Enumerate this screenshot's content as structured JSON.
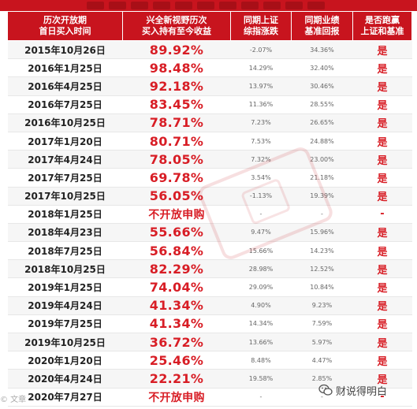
{
  "table": {
    "headers": [
      "历次开放期\n首日买入时间",
      "兴全新视野历次\n买入持有至今收益",
      "同期上证\n综指涨跌",
      "同期业绩\n基准回报",
      "是否跑赢\n上证和基准"
    ],
    "rows": [
      {
        "date": "2015年10月26日",
        "return": "89.92%",
        "sh": "-2.07%",
        "bench": "34.36%",
        "beat": "是"
      },
      {
        "date": "2016年1月25日",
        "return": "98.48%",
        "sh": "14.29%",
        "bench": "32.40%",
        "beat": "是"
      },
      {
        "date": "2016年4月25日",
        "return": "92.18%",
        "sh": "13.97%",
        "bench": "30.46%",
        "beat": "是"
      },
      {
        "date": "2016年7月25日",
        "return": "83.45%",
        "sh": "11.36%",
        "bench": "28.55%",
        "beat": "是"
      },
      {
        "date": "2016年10月25日",
        "return": "78.71%",
        "sh": "7.23%",
        "bench": "26.65%",
        "beat": "是"
      },
      {
        "date": "2017年1月20日",
        "return": "80.71%",
        "sh": "7.53%",
        "bench": "24.88%",
        "beat": "是"
      },
      {
        "date": "2017年4月24日",
        "return": "78.05%",
        "sh": "7.32%",
        "bench": "23.00%",
        "beat": "是"
      },
      {
        "date": "2017年7月25日",
        "return": "69.78%",
        "sh": "3.54%",
        "bench": "21.18%",
        "beat": "是"
      },
      {
        "date": "2017年10月25日",
        "return": "56.05%",
        "sh": "-1.13%",
        "bench": "19.39%",
        "beat": "是"
      },
      {
        "date": "2018年1月25日",
        "return": "不开放申购",
        "sh": "-",
        "bench": "-",
        "beat": "-"
      },
      {
        "date": "2018年4月23日",
        "return": "55.66%",
        "sh": "9.47%",
        "bench": "15.96%",
        "beat": "是"
      },
      {
        "date": "2018年7月25日",
        "return": "56.84%",
        "sh": "15.66%",
        "bench": "14.23%",
        "beat": "是"
      },
      {
        "date": "2018年10月25日",
        "return": "82.29%",
        "sh": "28.98%",
        "bench": "12.52%",
        "beat": "是"
      },
      {
        "date": "2019年1月25日",
        "return": "74.04%",
        "sh": "29.09%",
        "bench": "10.84%",
        "beat": "是"
      },
      {
        "date": "2019年4月24日",
        "return": "41.34%",
        "sh": "4.90%",
        "bench": "9.23%",
        "beat": "是"
      },
      {
        "date": "2019年7月25日",
        "return": "41.34%",
        "sh": "14.34%",
        "bench": "7.59%",
        "beat": "是"
      },
      {
        "date": "2019年10月25日",
        "return": "36.72%",
        "sh": "13.66%",
        "bench": "5.97%",
        "beat": "是"
      },
      {
        "date": "2020年1月20日",
        "return": "25.46%",
        "sh": "8.48%",
        "bench": "4.47%",
        "beat": "是"
      },
      {
        "date": "2020年4月24日",
        "return": "22.21%",
        "sh": "19.58%",
        "bench": "2.85%",
        "beat": "是"
      },
      {
        "date": "2020年7月27日",
        "return": "不开放申购",
        "sh": "-",
        "bench": "-",
        "beat": "-"
      }
    ]
  },
  "watermark": {
    "left": "© 文章",
    "right": "财说得明白",
    "icon": "wechat-icon"
  },
  "colors": {
    "header_bg": "#c8141e",
    "accent_red": "#d81d25",
    "stripe": "#f6f6f6"
  }
}
